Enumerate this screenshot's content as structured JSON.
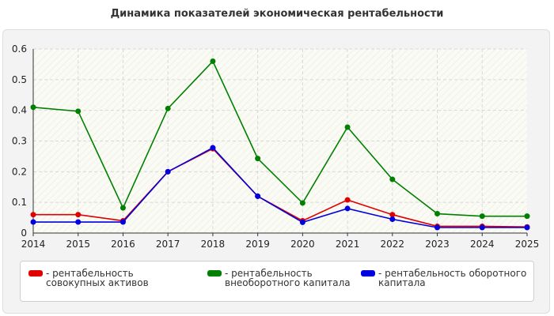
{
  "title": "Динамика показателей экономическая рентабельности",
  "chart_data": {
    "type": "line",
    "x": [
      "2014",
      "2015",
      "2016",
      "2017",
      "2018",
      "2019",
      "2020",
      "2021",
      "2022",
      "2023",
      "2024",
      "2025"
    ],
    "ylim": [
      0,
      0.6
    ],
    "yticks": [
      "0",
      "0.1",
      "0.2",
      "0.3",
      "0.4",
      "0.5",
      "0.6"
    ],
    "ytick_values": [
      0,
      0.1,
      0.2,
      0.3,
      0.4,
      0.5,
      0.6
    ],
    "grid": true,
    "legend_position": "bottom",
    "series": [
      {
        "name": "- рентабельность совокупных активов",
        "color": "#e00000",
        "values": [
          0.06,
          0.06,
          0.04,
          0.2,
          0.275,
          0.12,
          0.04,
          0.108,
          0.06,
          0.022,
          0.022,
          0.02
        ]
      },
      {
        "name": "- рентабельность внеоборотного капитала",
        "color": "#008000",
        "values": [
          0.41,
          0.397,
          0.082,
          0.406,
          0.56,
          0.243,
          0.098,
          0.345,
          0.175,
          0.063,
          0.055,
          0.055
        ]
      },
      {
        "name": "- рентабельность оборотного капитала",
        "color": "#0000e0",
        "values": [
          0.036,
          0.036,
          0.036,
          0.2,
          0.278,
          0.12,
          0.035,
          0.08,
          0.045,
          0.018,
          0.018,
          0.018
        ]
      }
    ]
  }
}
